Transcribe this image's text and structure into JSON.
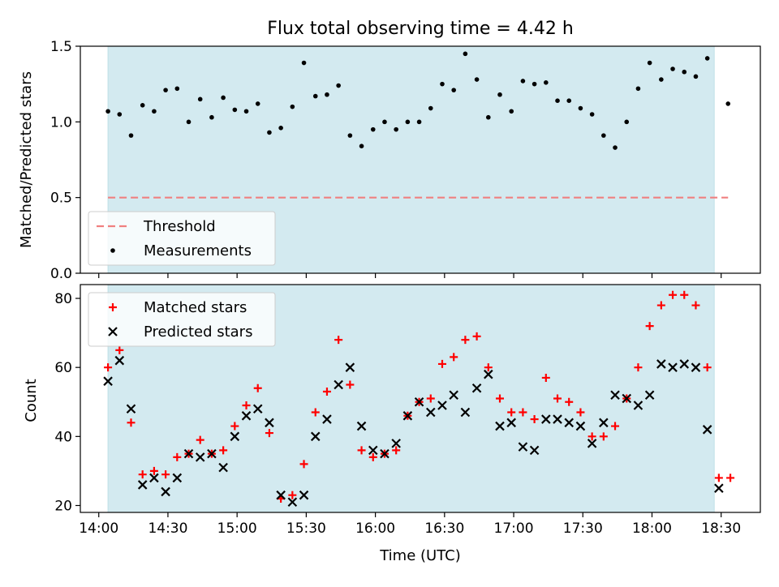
{
  "chart_data": {
    "title": "Flux total observing time = 4.42 h",
    "x_axis": {
      "label": "Time (UTC)",
      "ticks": [
        "14:00",
        "14:30",
        "15:00",
        "15:30",
        "16:00",
        "16:30",
        "17:00",
        "17:30",
        "18:00",
        "18:30"
      ],
      "range": [
        "13:52",
        "18:47"
      ]
    },
    "observing_window": {
      "start": "14:04",
      "end": "18:27",
      "color": "#d3eaf0"
    },
    "panels": [
      {
        "type": "scatter",
        "ylabel": "Matched/Predicted stars",
        "ylim": [
          0,
          1.5
        ],
        "yticks": [
          "0.0",
          "0.5",
          "1.0",
          "1.5"
        ],
        "threshold": {
          "name": "Threshold",
          "value": 0.5,
          "color": "#f08080"
        },
        "legend": [
          "Threshold",
          "Measurements"
        ],
        "legend_loc": "lower-left",
        "series": [
          {
            "name": "Measurements",
            "marker": "dot",
            "color": "#000000",
            "x": [
              "14:04",
              "14:09",
              "14:14",
              "14:19",
              "14:24",
              "14:29",
              "14:34",
              "14:39",
              "14:44",
              "14:49",
              "14:54",
              "14:59",
              "15:04",
              "15:09",
              "15:14",
              "15:19",
              "15:24",
              "15:29",
              "15:34",
              "15:39",
              "15:44",
              "15:49",
              "15:54",
              "15:59",
              "16:04",
              "16:09",
              "16:14",
              "16:19",
              "16:24",
              "16:29",
              "16:34",
              "16:39",
              "16:44",
              "16:49",
              "16:54",
              "16:59",
              "17:04",
              "17:09",
              "17:14",
              "17:19",
              "17:24",
              "17:29",
              "17:34",
              "17:39",
              "17:44",
              "17:49",
              "17:54",
              "17:59",
              "18:04",
              "18:09",
              "18:14",
              "18:19",
              "18:24",
              "18:33"
            ],
            "y": [
              1.07,
              1.05,
              0.91,
              1.11,
              1.07,
              1.21,
              1.22,
              1.0,
              1.15,
              1.03,
              1.16,
              1.08,
              1.07,
              1.12,
              0.93,
              0.96,
              1.1,
              1.39,
              1.17,
              1.18,
              1.24,
              0.91,
              0.84,
              0.95,
              1.0,
              0.95,
              1.0,
              1.0,
              1.09,
              1.25,
              1.21,
              1.45,
              1.28,
              1.03,
              1.18,
              1.07,
              1.27,
              1.25,
              1.26,
              1.14,
              1.14,
              1.09,
              1.05,
              0.91,
              0.83,
              1.0,
              1.22,
              1.39,
              1.28,
              1.35,
              1.33,
              1.3,
              1.42,
              1.12
            ]
          }
        ]
      },
      {
        "type": "scatter",
        "ylabel": "Count",
        "ylim": [
          18,
          84
        ],
        "yticks": [
          "20",
          "40",
          "60",
          "80"
        ],
        "legend": [
          "Matched stars",
          "Predicted stars"
        ],
        "legend_loc": "upper-left",
        "series": [
          {
            "name": "Matched stars",
            "marker": "plus",
            "color": "#ff0000",
            "x": [
              "14:04",
              "14:09",
              "14:14",
              "14:19",
              "14:24",
              "14:29",
              "14:34",
              "14:39",
              "14:44",
              "14:49",
              "14:54",
              "14:59",
              "15:04",
              "15:09",
              "15:14",
              "15:19",
              "15:24",
              "15:29",
              "15:34",
              "15:39",
              "15:44",
              "15:49",
              "15:54",
              "15:59",
              "16:04",
              "16:09",
              "16:14",
              "16:19",
              "16:24",
              "16:29",
              "16:34",
              "16:39",
              "16:44",
              "16:49",
              "16:54",
              "16:59",
              "17:04",
              "17:09",
              "17:14",
              "17:19",
              "17:24",
              "17:29",
              "17:34",
              "17:39",
              "17:44",
              "17:49",
              "17:54",
              "17:59",
              "18:04",
              "18:09",
              "18:14",
              "18:19",
              "18:24",
              "18:29",
              "18:34"
            ],
            "y": [
              60,
              65,
              44,
              29,
              30,
              29,
              34,
              35,
              39,
              35,
              36,
              43,
              49,
              54,
              41,
              22,
              23,
              32,
              47,
              53,
              68,
              55,
              36,
              34,
              35,
              36,
              46,
              50,
              51,
              61,
              63,
              68,
              69,
              60,
              51,
              47,
              47,
              45,
              57,
              51,
              50,
              47,
              40,
              40,
              43,
              51,
              60,
              72,
              78,
              81,
              81,
              78,
              60,
              28,
              28
            ]
          },
          {
            "name": "Predicted stars",
            "marker": "x",
            "color": "#000000",
            "x": [
              "14:04",
              "14:09",
              "14:14",
              "14:19",
              "14:24",
              "14:29",
              "14:34",
              "14:39",
              "14:44",
              "14:49",
              "14:54",
              "14:59",
              "15:04",
              "15:09",
              "15:14",
              "15:19",
              "15:24",
              "15:29",
              "15:34",
              "15:39",
              "15:44",
              "15:49",
              "15:54",
              "15:59",
              "16:04",
              "16:09",
              "16:14",
              "16:19",
              "16:24",
              "16:29",
              "16:34",
              "16:39",
              "16:44",
              "16:49",
              "16:54",
              "16:59",
              "17:04",
              "17:09",
              "17:14",
              "17:19",
              "17:24",
              "17:29",
              "17:34",
              "17:39",
              "17:44",
              "17:49",
              "17:54",
              "17:59",
              "18:04",
              "18:09",
              "18:14",
              "18:19",
              "18:24",
              "18:29"
            ],
            "y": [
              56,
              62,
              48,
              26,
              28,
              24,
              28,
              35,
              34,
              35,
              31,
              40,
              46,
              48,
              44,
              23,
              21,
              23,
              40,
              45,
              55,
              60,
              43,
              36,
              35,
              38,
              46,
              50,
              47,
              49,
              52,
              47,
              54,
              58,
              43,
              44,
              37,
              36,
              45,
              45,
              44,
              43,
              38,
              44,
              52,
              51,
              49,
              52,
              61,
              60,
              61,
              60,
              42,
              25
            ]
          }
        ]
      }
    ]
  }
}
